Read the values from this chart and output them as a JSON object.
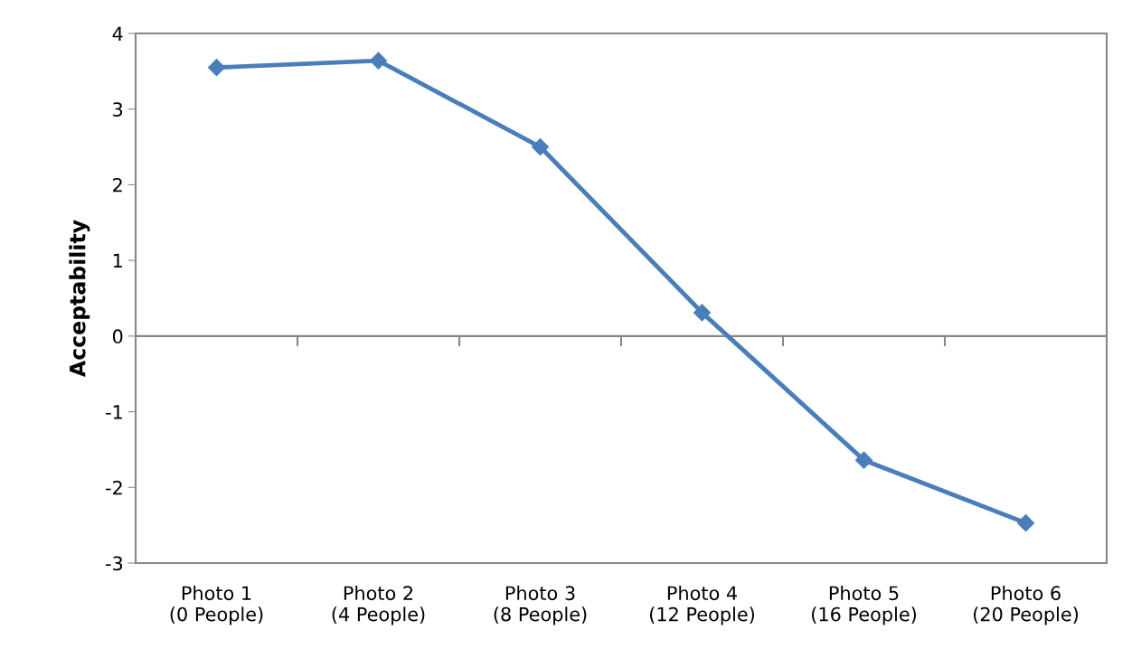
{
  "chart_data": {
    "type": "line",
    "ylabel": "Acceptability",
    "categories": [
      "Photo 1\n(0 People)",
      "Photo 2\n(4 People)",
      "Photo 3\n(8 People)",
      "Photo 4\n(12 People)",
      "Photo 5\n(16 People)",
      "Photo 6\n(20 People)"
    ],
    "series": [
      {
        "color": "#4a7ebb",
        "values": [
          3.55,
          3.64,
          2.5,
          0.31,
          -1.64,
          -2.47
        ]
      }
    ],
    "ylim": [
      -3,
      4
    ],
    "yticks": [
      -3,
      -2,
      -1,
      0,
      1,
      2,
      3,
      4
    ],
    "legend": false,
    "marker": "diamond",
    "line_style": "solid"
  }
}
